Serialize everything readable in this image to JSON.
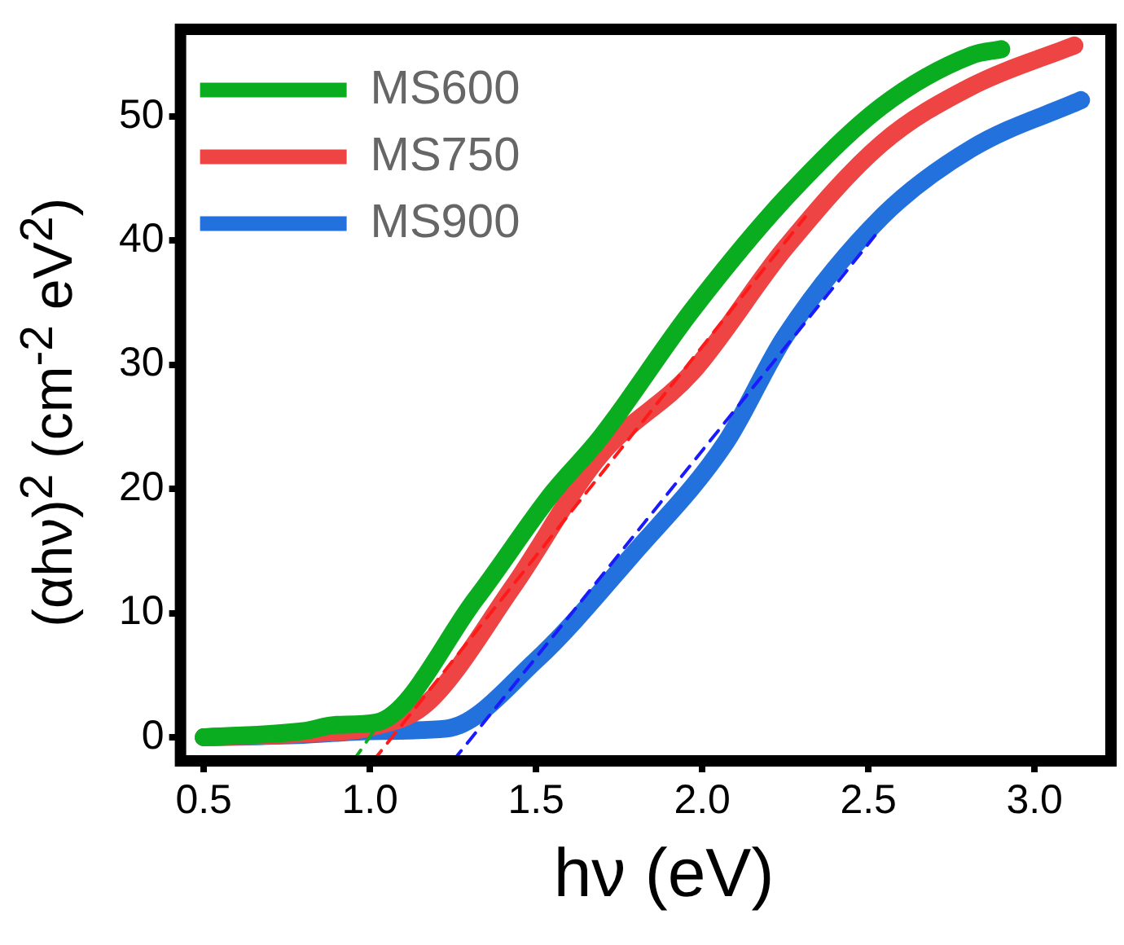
{
  "chart_data": {
    "type": "line",
    "xlabel": "hν (eV)",
    "ylabel": "(αhν)$^{2}$ (cm$^{-2}$ eV$^{2}$)",
    "xlim": [
      0.43,
      3.23
    ],
    "xticks": [
      {
        "value": 0.5,
        "label": "0.5"
      },
      {
        "value": 1,
        "label": "1.0"
      },
      {
        "value": 1.5,
        "label": "1.5"
      },
      {
        "value": 2,
        "label": "2.0"
      },
      {
        "value": 2.5,
        "label": "2.5"
      },
      {
        "value": 3,
        "label": "3.0"
      }
    ],
    "ylim": [
      -1.9,
      57
    ],
    "yticks": [
      0,
      10,
      20,
      30,
      40,
      50
    ],
    "grid": false,
    "legend": "top left",
    "marker": "none",
    "line_style": "solid",
    "series": [
      {
        "name": "MS600",
        "color": "#0aad1f",
        "x": [
          0.5,
          0.8,
          0.9,
          1.02,
          1.32,
          1.55,
          1.69,
          1.97,
          2.25,
          2.54,
          2.81,
          2.9
        ],
        "values": [
          0,
          0.5,
          1,
          1.2,
          11.2,
          19.7,
          24,
          34.4,
          43.4,
          50.8,
          54.9,
          55.4
        ]
      },
      {
        "name": "MS750",
        "color": "#ee4444",
        "x": [
          0.5,
          0.8,
          1.0,
          1.17,
          1.43,
          1.69,
          1.97,
          2.25,
          2.54,
          2.81,
          3.12
        ],
        "values": [
          0,
          0.3,
          0.8,
          2.7,
          12.1,
          22.6,
          29.4,
          39.4,
          47.8,
          52.4,
          55.7
        ]
      },
      {
        "name": "MS900",
        "color": "#2271dc",
        "x": [
          0.5,
          0.8,
          1.0,
          1.23,
          1.5,
          1.79,
          2.07,
          2.25,
          2.54,
          2.81,
          3.14
        ],
        "values": [
          0,
          0.2,
          0.5,
          0.7,
          6.2,
          14.7,
          23.7,
          32.3,
          41.9,
          47.4,
          51.3
        ]
      },
      {
        "type": "line",
        "line_style": "dashed",
        "color": "#0aad1f",
        "x": [
          0.95,
          1.05
        ],
        "values": [
          -1.9,
          2
        ]
      },
      {
        "type": "line",
        "line_style": "dashed",
        "color": "#ff1a1a",
        "x": [
          1.01,
          2.31
        ],
        "values": [
          -1.9,
          41.9
        ]
      },
      {
        "type": "line",
        "line_style": "dashed",
        "color": "#1a1aff",
        "x": [
          1.25,
          2.52
        ],
        "values": [
          -1.9,
          40.4
        ]
      }
    ]
  }
}
